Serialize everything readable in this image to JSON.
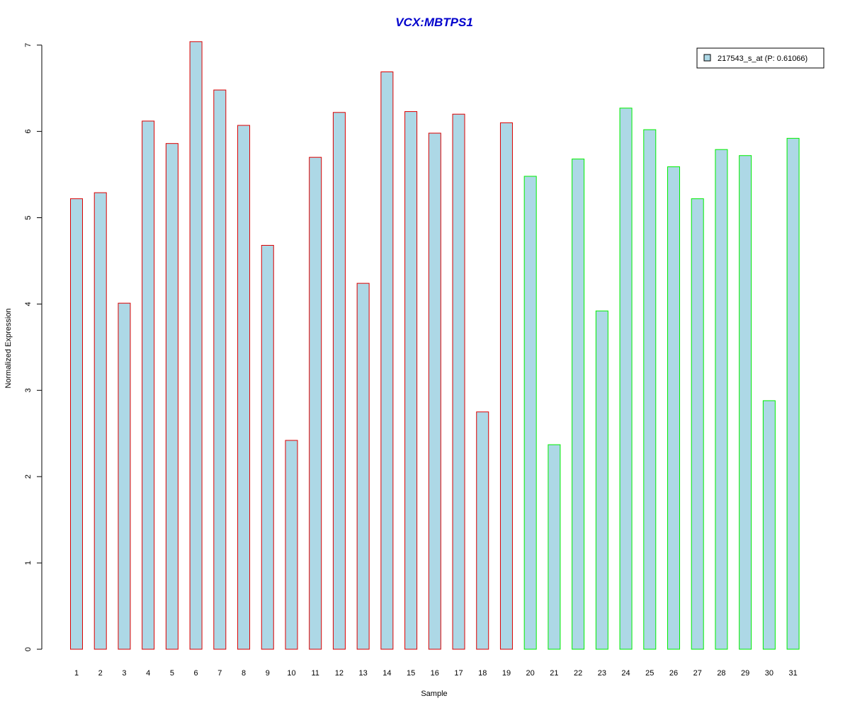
{
  "chart_data": {
    "type": "bar",
    "title": "VCX:MBTPS1",
    "xlabel": "Sample",
    "ylabel": "Normalized Expression",
    "ylim": [
      0,
      7
    ],
    "yticks": [
      "0",
      "1",
      "2",
      "3",
      "4",
      "5",
      "6",
      "7"
    ],
    "categories": [
      "1",
      "2",
      "3",
      "4",
      "5",
      "6",
      "7",
      "8",
      "9",
      "10",
      "11",
      "12",
      "13",
      "14",
      "15",
      "16",
      "17",
      "18",
      "19",
      "20",
      "21",
      "22",
      "23",
      "24",
      "25",
      "26",
      "27",
      "28",
      "29",
      "30",
      "31"
    ],
    "series": [
      {
        "name": "217543_s_at (P: 0.61066)",
        "values": [
          5.22,
          5.29,
          4.01,
          6.12,
          5.86,
          7.04,
          6.48,
          6.07,
          4.68,
          2.42,
          5.7,
          6.22,
          4.24,
          6.69,
          6.23,
          5.98,
          6.2,
          2.75,
          6.1,
          5.48,
          2.37,
          5.68,
          3.92,
          6.27,
          6.02,
          5.59,
          5.22,
          5.79,
          5.72,
          2.88,
          5.92
        ]
      }
    ],
    "groups": [
      {
        "from": 1,
        "to": 19,
        "border_color": "#dd0000"
      },
      {
        "from": 20,
        "to": 31,
        "border_color": "#00ee00"
      }
    ],
    "fill_color": "#add8e6",
    "title_color": "#0000cc",
    "legend_position": "top-right",
    "grid": false
  }
}
